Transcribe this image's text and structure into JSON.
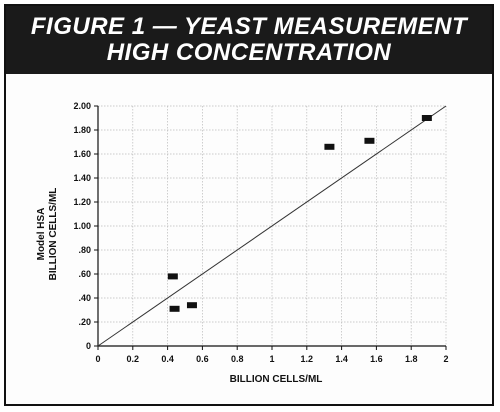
{
  "chart_data": {
    "type": "scatter",
    "title_line1": "FIGURE 1 — YEAST MEASUREMENT",
    "title_line2": "HIGH CONCENTRATION",
    "xlabel": "BILLION CELLS/ML",
    "ylabel_line1": "Model HSA",
    "ylabel_line2": "BILLION CELLS/ML",
    "xlim": [
      0,
      2
    ],
    "ylim": [
      0,
      2
    ],
    "grid": true,
    "x_ticks": [
      {
        "value": 0,
        "label": "0"
      },
      {
        "value": 0.2,
        "label": "0.2"
      },
      {
        "value": 0.4,
        "label": "0.4"
      },
      {
        "value": 0.6,
        "label": "0.6"
      },
      {
        "value": 0.8,
        "label": "0.8"
      },
      {
        "value": 1.0,
        "label": "1"
      },
      {
        "value": 1.2,
        "label": "1.2"
      },
      {
        "value": 1.4,
        "label": "1.4"
      },
      {
        "value": 1.6,
        "label": "1.6"
      },
      {
        "value": 1.8,
        "label": "1.8"
      },
      {
        "value": 2.0,
        "label": "2"
      }
    ],
    "y_ticks": [
      {
        "value": 0,
        "label": "0"
      },
      {
        "value": 0.2,
        "label": ".20"
      },
      {
        "value": 0.4,
        "label": ".40"
      },
      {
        "value": 0.6,
        "label": ".60"
      },
      {
        "value": 0.8,
        "label": ".80"
      },
      {
        "value": 1.0,
        "label": "1.00"
      },
      {
        "value": 1.2,
        "label": "1.20"
      },
      {
        "value": 1.4,
        "label": "1.40"
      },
      {
        "value": 1.6,
        "label": "1.60"
      },
      {
        "value": 1.8,
        "label": "1.80"
      },
      {
        "value": 2.0,
        "label": "2.00"
      }
    ],
    "points": [
      {
        "x": 0.43,
        "y": 0.58
      },
      {
        "x": 0.44,
        "y": 0.31
      },
      {
        "x": 0.54,
        "y": 0.34
      },
      {
        "x": 1.33,
        "y": 1.66
      },
      {
        "x": 1.56,
        "y": 1.71
      },
      {
        "x": 1.89,
        "y": 1.9
      }
    ],
    "reference_line": {
      "from": [
        0,
        0
      ],
      "to": [
        2,
        2
      ]
    },
    "marker_color": "#111111",
    "line_color": "#333333",
    "grid_color": "#bbbbbb"
  }
}
